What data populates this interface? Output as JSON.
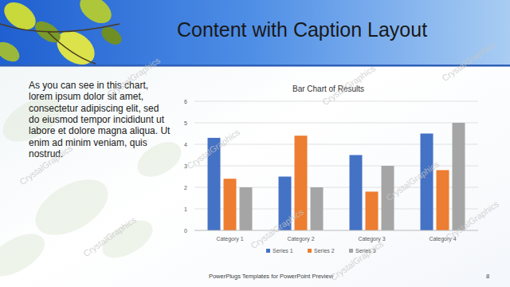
{
  "slide": {
    "title": "Content with Caption Layout",
    "caption": [
      "As you can see in this chart,",
      "lorem ipsum dolor sit amet,",
      "consectetur adipiscing elit, sed",
      "do eiusmod tempor incididunt ut",
      "labore et dolore magna aliqua. Ut",
      "enim ad minim veniam, quis",
      "nostrud."
    ],
    "footer": "PowerPlugs Templates for PowerPoint Preview",
    "page_number": "8",
    "watermark": "CrystalGraphics"
  },
  "chart_data": {
    "type": "bar",
    "title": "Bar Chart of Results",
    "categories": [
      "Category 1",
      "Category 2",
      "Category 3",
      "Category 4"
    ],
    "series": [
      {
        "name": "Series 1",
        "color": "#4472c4",
        "values": [
          4.3,
          2.5,
          3.5,
          4.5
        ]
      },
      {
        "name": "Series 2",
        "color": "#ed7d31",
        "values": [
          2.4,
          4.4,
          1.8,
          2.8
        ]
      },
      {
        "name": "Series 3",
        "color": "#a5a5a5",
        "values": [
          2,
          2,
          3,
          5
        ]
      }
    ],
    "ylim": [
      0,
      6
    ],
    "yticks": [
      0,
      1,
      2,
      3,
      4,
      5,
      6
    ],
    "grid": true,
    "legend": "bottom"
  }
}
